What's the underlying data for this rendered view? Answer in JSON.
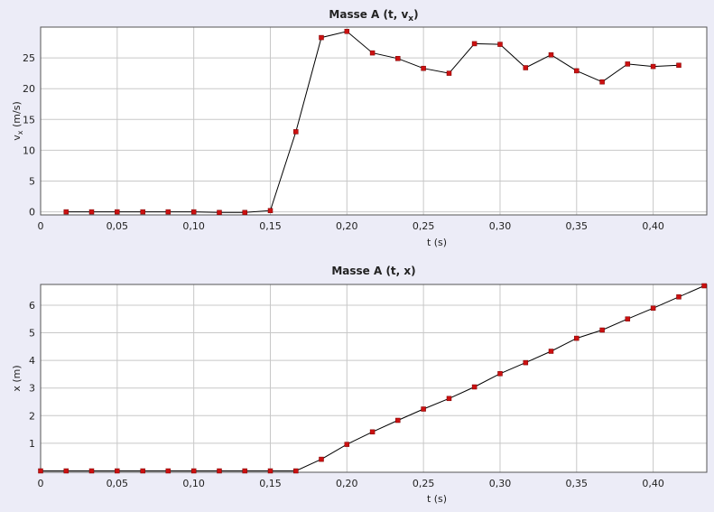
{
  "chart_data": [
    {
      "type": "line",
      "title": "Masse A (t, v",
      "title_sub": "x",
      "title_end": ")",
      "xlabel": "t (s)",
      "ylabel": "v",
      "ylabel_sub": "x",
      "ylabel_end": " (m/s)",
      "xlim": [
        0,
        0.435
      ],
      "ylim": [
        -0.5,
        30
      ],
      "xticks": [
        0,
        0.05,
        0.1,
        0.15,
        0.2,
        0.25,
        0.3,
        0.35,
        0.4
      ],
      "xtick_labels": [
        "0",
        "0,05",
        "0,10",
        "0,15",
        "0,20",
        "0,25",
        "0,30",
        "0,35",
        "0,40"
      ],
      "yticks": [
        0,
        5,
        10,
        15,
        20,
        25
      ],
      "ytick_labels": [
        "0",
        "5",
        "10",
        "15",
        "20",
        "25"
      ],
      "grid": true,
      "x": [
        0.0167,
        0.0333,
        0.05,
        0.0667,
        0.0833,
        0.1,
        0.1167,
        0.1333,
        0.15,
        0.1667,
        0.1833,
        0.2,
        0.2167,
        0.2333,
        0.25,
        0.2667,
        0.2833,
        0.3,
        0.3167,
        0.3333,
        0.35,
        0.3667,
        0.3833,
        0.4,
        0.4167
      ],
      "y": [
        0,
        0,
        0,
        0,
        0,
        0,
        -0.1,
        -0.1,
        0.2,
        13.0,
        28.3,
        29.3,
        25.8,
        24.9,
        23.3,
        22.5,
        27.3,
        27.2,
        23.4,
        25.5,
        22.9,
        21.1,
        24.0,
        23.6,
        23.8
      ]
    },
    {
      "type": "line",
      "title": "Masse A (t, x)",
      "xlabel": "t (s)",
      "ylabel": "x (m)",
      "xlim": [
        0,
        0.435
      ],
      "ylim": [
        -0.05,
        6.75
      ],
      "xticks": [
        0,
        0.05,
        0.1,
        0.15,
        0.2,
        0.25,
        0.3,
        0.35,
        0.4
      ],
      "xtick_labels": [
        "0",
        "0,05",
        "0,10",
        "0,15",
        "0,20",
        "0,25",
        "0,30",
        "0,35",
        "0,40"
      ],
      "yticks": [
        1,
        2,
        3,
        4,
        5,
        6
      ],
      "ytick_labels": [
        "1",
        "2",
        "3",
        "4",
        "5",
        "6"
      ],
      "grid": true,
      "x": [
        0,
        0.0167,
        0.0333,
        0.05,
        0.0667,
        0.0833,
        0.1,
        0.1167,
        0.1333,
        0.15,
        0.1667,
        0.1833,
        0.2,
        0.2167,
        0.2333,
        0.25,
        0.2667,
        0.2833,
        0.3,
        0.3167,
        0.3333,
        0.35,
        0.3667,
        0.3833,
        0.4,
        0.4167,
        0.4333
      ],
      "y": [
        0,
        0,
        0,
        0,
        0,
        0,
        0,
        0,
        0,
        0,
        0,
        0.42,
        0.96,
        1.41,
        1.83,
        2.24,
        2.62,
        3.04,
        3.52,
        3.92,
        4.33,
        4.8,
        5.1,
        5.5,
        5.89,
        6.3,
        6.7
      ]
    }
  ],
  "colors": {
    "background": "#ececf7",
    "marker": "#cc1111",
    "line": "#000000",
    "grid": "#c8c8c8"
  }
}
